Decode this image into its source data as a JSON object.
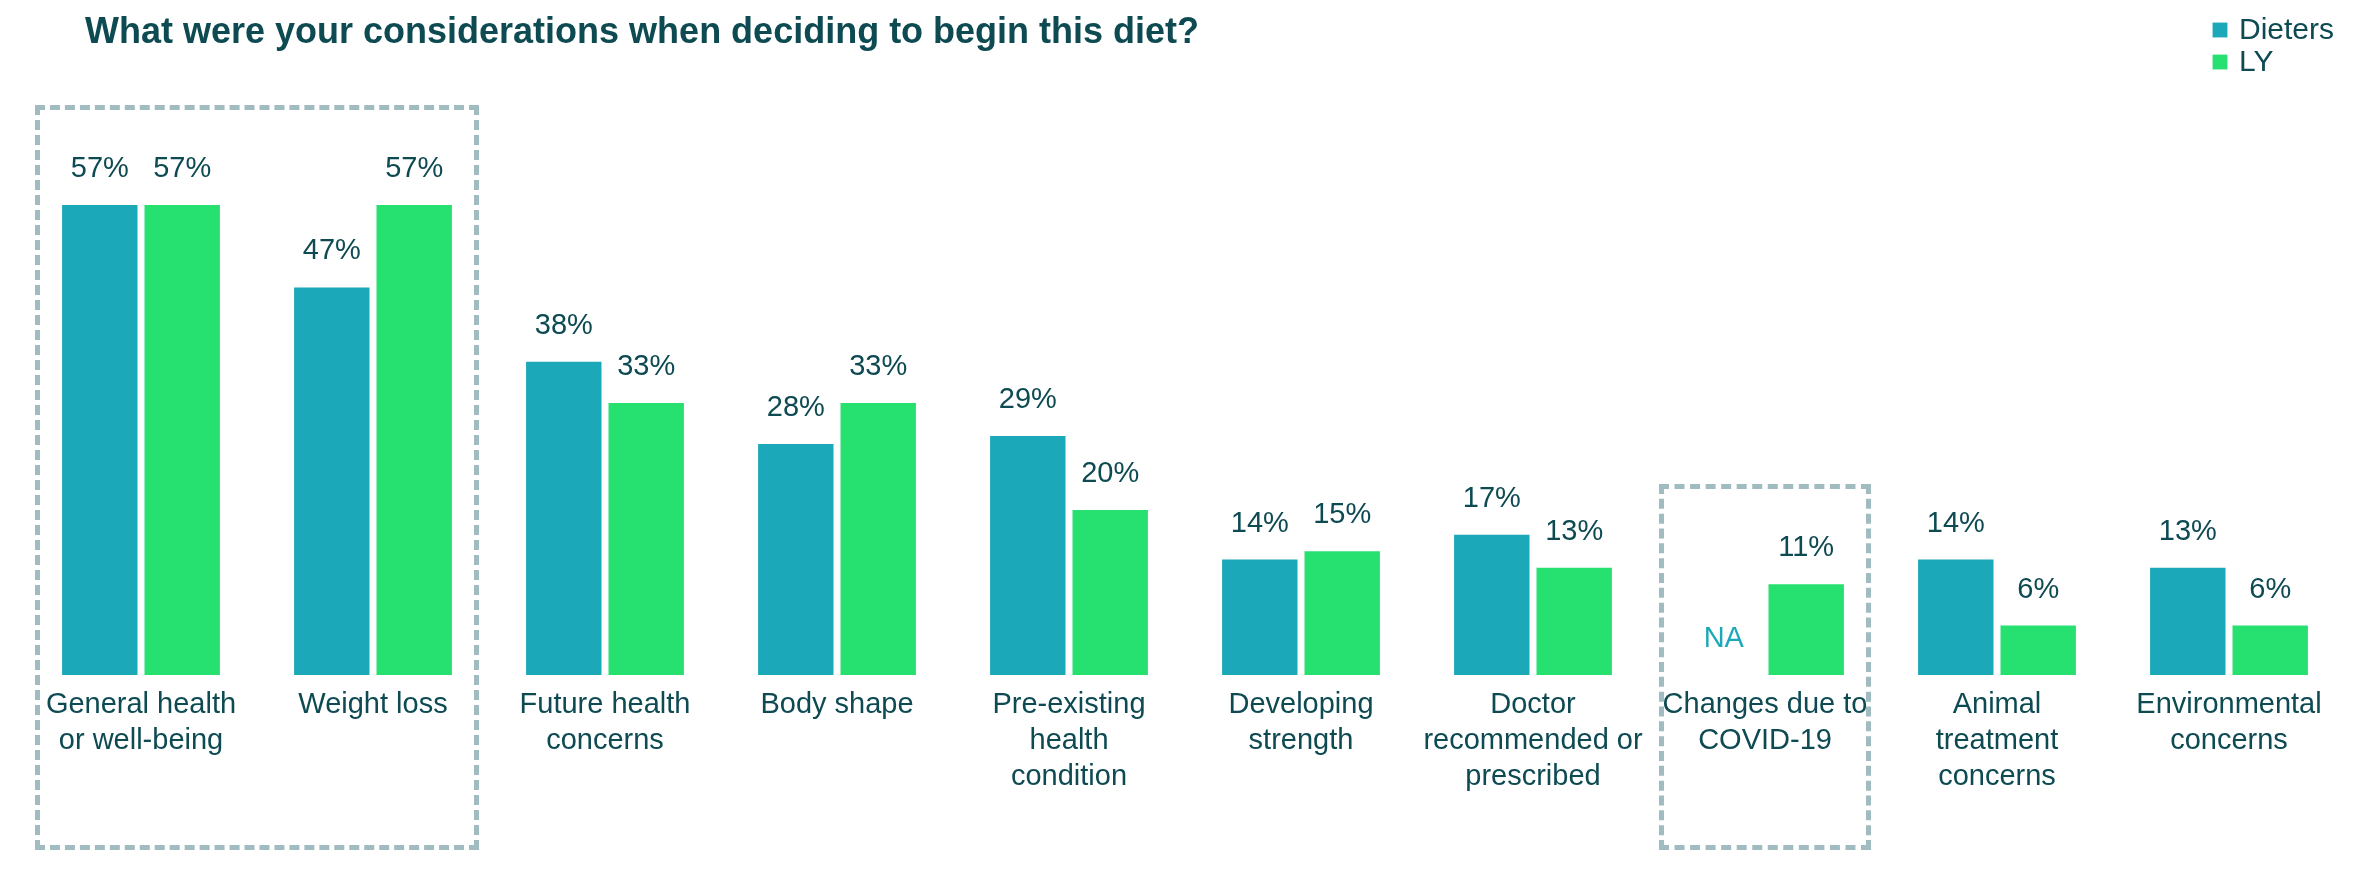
{
  "chart_data": {
    "type": "bar",
    "title": "What were your considerations when deciding to begin this diet?",
    "categories": [
      "General health or well-being",
      "Weight loss",
      "Future health concerns",
      "Body shape",
      "Pre-existing health condition",
      "Developing strength",
      "Doctor recommended or prescribed",
      "Changes due to COVID-19",
      "Animal treatment concerns",
      "Environmental concerns"
    ],
    "series": [
      {
        "name": "Dieters",
        "color": "#1ba8b8",
        "values": [
          57,
          47,
          38,
          28,
          29,
          14,
          17,
          null,
          14,
          13
        ],
        "value_labels": [
          "57%",
          "47%",
          "38%",
          "28%",
          "29%",
          "14%",
          "17%",
          "NA",
          "14%",
          "13%"
        ]
      },
      {
        "name": "LY",
        "color": "#26e070",
        "values": [
          57,
          57,
          33,
          33,
          20,
          15,
          13,
          11,
          6,
          6
        ],
        "value_labels": [
          "57%",
          "57%",
          "33%",
          "33%",
          "20%",
          "15%",
          "13%",
          "11%",
          "6%",
          "6%"
        ]
      }
    ],
    "legend": "top right",
    "tick_labels": "x"
  }
}
